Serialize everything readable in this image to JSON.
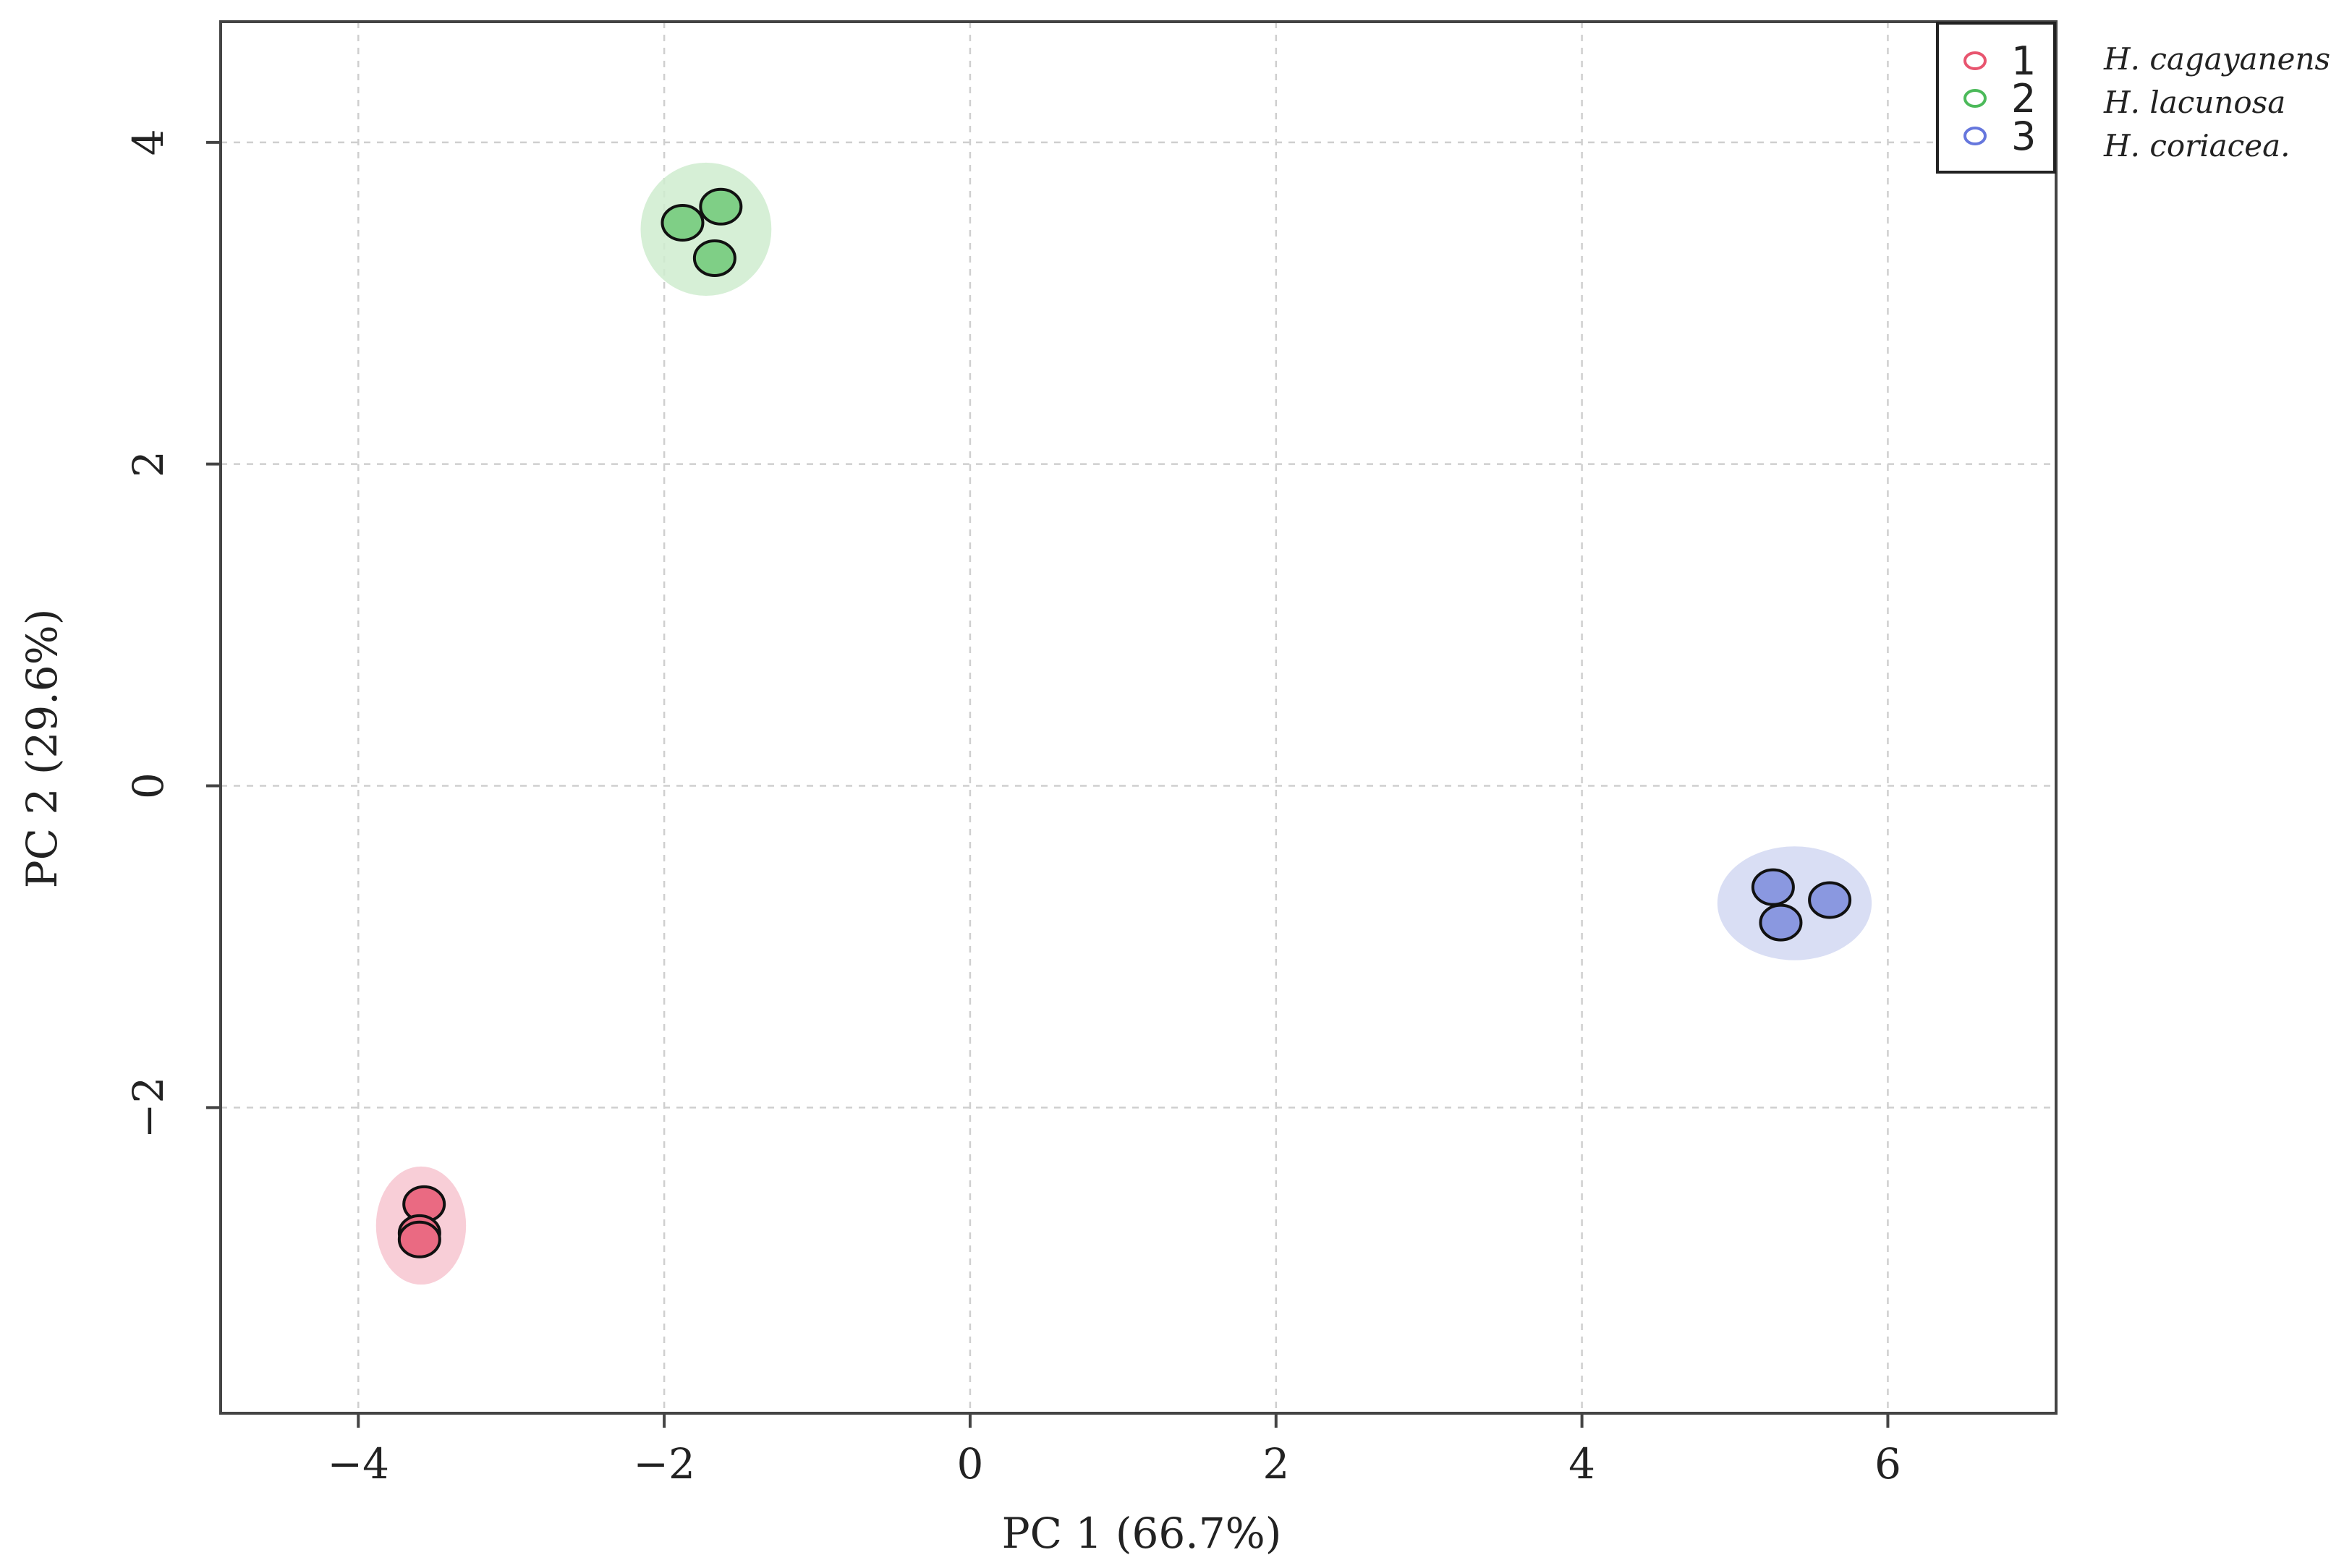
{
  "chart_data": {
    "type": "scatter",
    "title": "",
    "xlabel": "PC 1 (66.7%)",
    "ylabel": "PC 2 (29.6%)",
    "xlim": [
      -4.9,
      7.1
    ],
    "ylim": [
      -3.9,
      4.75
    ],
    "grid": true,
    "x_ticks": [
      -4,
      -2,
      0,
      2,
      4,
      6
    ],
    "x_tick_labels": [
      "−4",
      "−2",
      "0",
      "2",
      "4",
      "6"
    ],
    "y_ticks": [
      -2,
      0,
      2,
      4
    ],
    "y_tick_labels": [
      "−2",
      "0",
      "2",
      "4"
    ],
    "legend_position": "top-right",
    "series": [
      {
        "name": "1",
        "species": "H. cagayanensis",
        "color": "#e8556f",
        "fill": "#ea6a82",
        "ellipse_fill": "#f7c5d0",
        "points": [
          {
            "x": -3.57,
            "y": -2.6
          },
          {
            "x": -3.6,
            "y": -2.78
          },
          {
            "x": -3.6,
            "y": -2.82
          }
        ]
      },
      {
        "name": "2",
        "species": "H. lacunosa",
        "color": "#4cba5a",
        "fill": "#7fcf86",
        "ellipse_fill": "#cfeccf",
        "points": [
          {
            "x": -1.63,
            "y": 3.6
          },
          {
            "x": -1.88,
            "y": 3.5
          },
          {
            "x": -1.67,
            "y": 3.28
          }
        ]
      },
      {
        "name": "3",
        "species": "H. coriacea.",
        "color": "#6677dd",
        "fill": "#8a98e0",
        "ellipse_fill": "#d2d8f2",
        "points": [
          {
            "x": 5.25,
            "y": -0.63
          },
          {
            "x": 5.62,
            "y": -0.71
          },
          {
            "x": 5.3,
            "y": -0.85
          }
        ]
      }
    ]
  }
}
